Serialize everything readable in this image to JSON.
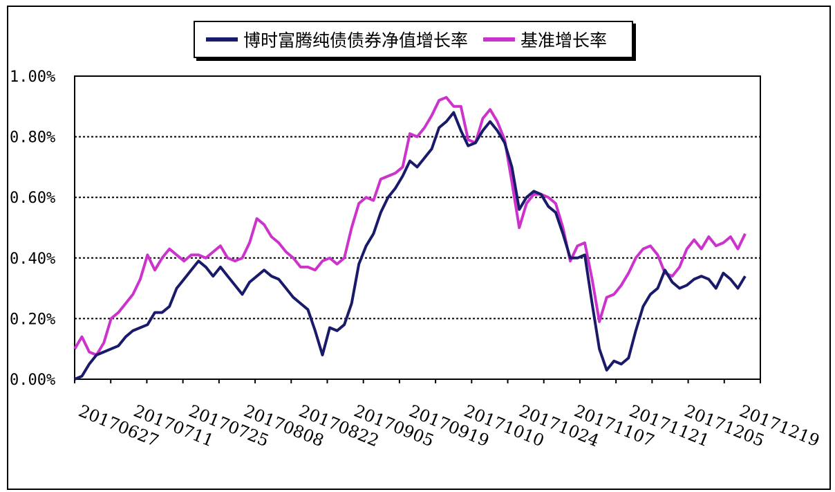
{
  "chart_data": {
    "type": "line",
    "title": "",
    "xlabel": "",
    "ylabel": "",
    "ylim": [
      0,
      0.01
    ],
    "y_tick_labels": [
      "0.00%",
      "0.20%",
      "0.40%",
      "0.60%",
      "0.80%",
      "1.00%"
    ],
    "y_tick_values": [
      0,
      0.002,
      0.004,
      0.006,
      0.008,
      0.01
    ],
    "x_tick_labels": [
      "20170627",
      "20170711",
      "20170725",
      "20170808",
      "20170822",
      "20170905",
      "20170919",
      "20171010",
      "20171024",
      "20171107",
      "20171121",
      "20171205",
      "20171219"
    ],
    "grid": "horizontal dashed",
    "legend_position": "top-center",
    "series": [
      {
        "name": "博时富腾纯债债券净值增长率",
        "color": "#1a1a6b",
        "values": [
          0.0,
          0.0001,
          0.0005,
          0.0008,
          0.0009,
          0.001,
          0.0011,
          0.0014,
          0.0016,
          0.0017,
          0.0018,
          0.0022,
          0.0022,
          0.0024,
          0.003,
          0.0033,
          0.0036,
          0.0039,
          0.0037,
          0.0034,
          0.0037,
          0.0034,
          0.0031,
          0.0028,
          0.0032,
          0.0034,
          0.0036,
          0.0034,
          0.0033,
          0.003,
          0.0027,
          0.0025,
          0.0023,
          0.0016,
          0.0008,
          0.0017,
          0.0016,
          0.0018,
          0.0025,
          0.0038,
          0.0044,
          0.0048,
          0.0055,
          0.006,
          0.0063,
          0.0067,
          0.0072,
          0.007,
          0.0073,
          0.0076,
          0.0083,
          0.0085,
          0.0088,
          0.0082,
          0.0077,
          0.0078,
          0.0082,
          0.0085,
          0.0082,
          0.0078,
          0.007,
          0.0056,
          0.006,
          0.0062,
          0.0061,
          0.0057,
          0.0055,
          0.0048,
          0.004,
          0.004,
          0.0041,
          0.0025,
          0.001,
          0.0003,
          0.0006,
          0.0005,
          0.0007,
          0.0016,
          0.0024,
          0.0028,
          0.003,
          0.0036,
          0.0032,
          0.003,
          0.0031,
          0.0033,
          0.0034,
          0.0033,
          0.003,
          0.0035,
          0.0033,
          0.003,
          0.0034
        ]
      },
      {
        "name": "基准增长率",
        "color": "#cc33cc",
        "values": [
          0.001,
          0.0014,
          0.0009,
          0.0008,
          0.0012,
          0.002,
          0.0022,
          0.0025,
          0.0028,
          0.0033,
          0.0041,
          0.0036,
          0.004,
          0.0043,
          0.0041,
          0.0039,
          0.0041,
          0.0041,
          0.004,
          0.0042,
          0.0044,
          0.004,
          0.0039,
          0.004,
          0.0045,
          0.0053,
          0.0051,
          0.0047,
          0.0045,
          0.0042,
          0.004,
          0.0037,
          0.0037,
          0.0036,
          0.0039,
          0.004,
          0.0038,
          0.004,
          0.005,
          0.0058,
          0.006,
          0.0059,
          0.0066,
          0.0067,
          0.0068,
          0.007,
          0.0081,
          0.008,
          0.0083,
          0.0087,
          0.0092,
          0.0093,
          0.009,
          0.009,
          0.0079,
          0.0078,
          0.0086,
          0.0089,
          0.0085,
          0.0079,
          0.0065,
          0.005,
          0.0058,
          0.0061,
          0.0061,
          0.006,
          0.0058,
          0.005,
          0.0039,
          0.0044,
          0.0045,
          0.0033,
          0.0019,
          0.0027,
          0.0028,
          0.0031,
          0.0035,
          0.004,
          0.0043,
          0.0044,
          0.0041,
          0.0035,
          0.0034,
          0.0037,
          0.0043,
          0.0046,
          0.0043,
          0.0047,
          0.0044,
          0.0045,
          0.0047,
          0.0043,
          0.0048
        ]
      }
    ]
  }
}
